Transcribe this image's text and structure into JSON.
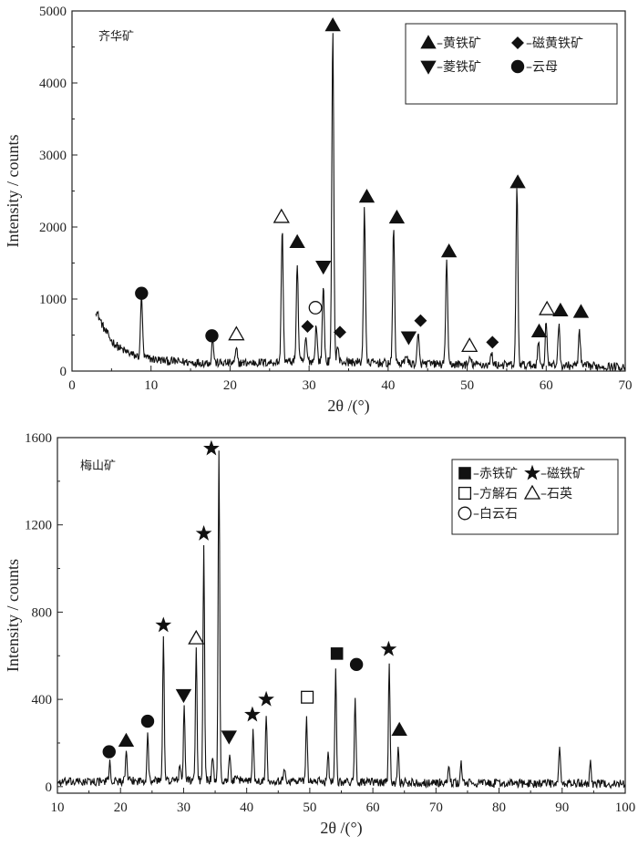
{
  "chart_data": [
    {
      "type": "line",
      "title": "",
      "panel_label": "齐华矿",
      "xlabel": "2θ /(°)",
      "ylabel": "Intensity / counts",
      "xlim": [
        0,
        70
      ],
      "ylim": [
        0,
        5000
      ],
      "xticks": [
        0,
        10,
        20,
        30,
        40,
        50,
        60,
        70
      ],
      "yticks": [
        0,
        1000,
        2000,
        3000,
        4000,
        5000
      ],
      "xtick_labels": [
        "0",
        "10",
        "20",
        "30",
        "40",
        "50",
        "60",
        "70"
      ],
      "ytick_labels": [
        "0",
        "1000",
        "2000",
        "3000",
        "4000",
        "5000"
      ],
      "legend": {
        "position": "top-right",
        "entries": [
          {
            "marker": "triangle-up-filled",
            "label": "–黄铁矿"
          },
          {
            "marker": "diamond-filled",
            "label": "–磁黄铁矿"
          },
          {
            "marker": "triangle-down-filled",
            "label": "–菱铁矿"
          },
          {
            "marker": "circle-filled",
            "label": "–云母"
          }
        ]
      },
      "baseline": {
        "x": [
          3,
          4,
          5,
          6,
          7,
          8,
          10,
          12,
          15,
          20,
          25,
          30,
          40,
          50,
          60,
          70
        ],
        "y": [
          850,
          600,
          420,
          320,
          260,
          210,
          170,
          140,
          120,
          110,
          120,
          140,
          110,
          90,
          80,
          60
        ]
      },
      "peaks": [
        {
          "x": 8.8,
          "y": 1050
        },
        {
          "x": 17.8,
          "y": 450
        },
        {
          "x": 20.8,
          "y": 300
        },
        {
          "x": 26.6,
          "y": 2000
        },
        {
          "x": 28.5,
          "y": 1500
        },
        {
          "x": 29.6,
          "y": 450
        },
        {
          "x": 30.9,
          "y": 650
        },
        {
          "x": 31.8,
          "y": 1200
        },
        {
          "x": 33.0,
          "y": 4800
        },
        {
          "x": 33.6,
          "y": 350
        },
        {
          "x": 37.0,
          "y": 2280
        },
        {
          "x": 40.7,
          "y": 2000
        },
        {
          "x": 42.3,
          "y": 250
        },
        {
          "x": 43.8,
          "y": 500
        },
        {
          "x": 47.4,
          "y": 1550
        },
        {
          "x": 50.4,
          "y": 180
        },
        {
          "x": 53.1,
          "y": 250
        },
        {
          "x": 56.3,
          "y": 2550
        },
        {
          "x": 59.0,
          "y": 400
        },
        {
          "x": 60.0,
          "y": 700
        },
        {
          "x": 61.6,
          "y": 650
        },
        {
          "x": 64.2,
          "y": 550
        }
      ],
      "markers": [
        {
          "symbol": "circle-filled",
          "x": 8.8,
          "y": 1080
        },
        {
          "symbol": "circle-filled",
          "x": 17.7,
          "y": 490
        },
        {
          "symbol": "triangle-up-open",
          "x": 20.8,
          "y": 510
        },
        {
          "symbol": "triangle-up-open",
          "x": 26.5,
          "y": 2140
        },
        {
          "symbol": "triangle-up-filled",
          "x": 28.5,
          "y": 1790
        },
        {
          "symbol": "diamond-filled",
          "x": 29.8,
          "y": 620
        },
        {
          "symbol": "circle-open",
          "x": 30.8,
          "y": 880
        },
        {
          "symbol": "triangle-down-filled",
          "x": 31.8,
          "y": 1450
        },
        {
          "symbol": "triangle-up-filled",
          "x": 33.0,
          "y": 4800
        },
        {
          "symbol": "diamond-filled",
          "x": 33.9,
          "y": 540
        },
        {
          "symbol": "triangle-up-filled",
          "x": 37.3,
          "y": 2420
        },
        {
          "symbol": "triangle-up-filled",
          "x": 41.1,
          "y": 2130
        },
        {
          "symbol": "triangle-down-filled",
          "x": 42.6,
          "y": 470
        },
        {
          "symbol": "diamond-filled",
          "x": 44.1,
          "y": 700
        },
        {
          "symbol": "triangle-up-filled",
          "x": 47.7,
          "y": 1660
        },
        {
          "symbol": "triangle-up-open",
          "x": 50.3,
          "y": 350
        },
        {
          "symbol": "diamond-filled",
          "x": 53.2,
          "y": 400
        },
        {
          "symbol": "triangle-up-filled",
          "x": 56.4,
          "y": 2620
        },
        {
          "symbol": "triangle-up-filled",
          "x": 59.1,
          "y": 550
        },
        {
          "symbol": "triangle-up-open",
          "x": 60.1,
          "y": 860
        },
        {
          "symbol": "triangle-up-filled",
          "x": 61.8,
          "y": 840
        },
        {
          "symbol": "triangle-up-filled",
          "x": 64.4,
          "y": 820
        }
      ]
    },
    {
      "type": "line",
      "title": "",
      "panel_label": "梅山矿",
      "xlabel": "2θ /(°)",
      "ylabel": "Intensity / counts",
      "xlim": [
        10,
        100
      ],
      "ylim": [
        -30,
        1600
      ],
      "xticks": [
        10,
        20,
        30,
        40,
        50,
        60,
        70,
        80,
        90,
        100
      ],
      "yticks": [
        0,
        400,
        800,
        1200,
        1600
      ],
      "xtick_labels": [
        "10",
        "20",
        "30",
        "40",
        "50",
        "60",
        "70",
        "80",
        "90",
        "100"
      ],
      "ytick_labels": [
        "0",
        "400",
        "800",
        "1200",
        "1600"
      ],
      "legend": {
        "position": "top-right",
        "entries": [
          {
            "marker": "square-filled",
            "label": "–赤铁矿"
          },
          {
            "marker": "star-filled",
            "label": "–磁铁矿"
          },
          {
            "marker": "square-open",
            "label": "–方解石"
          },
          {
            "marker": "triangle-up-open",
            "label": "–石英"
          },
          {
            "marker": "circle-open",
            "label": "–白云石"
          }
        ]
      },
      "baseline": {
        "x": [
          10,
          20,
          30,
          40,
          50,
          60,
          70,
          80,
          90,
          100
        ],
        "y": [
          20,
          25,
          30,
          30,
          25,
          20,
          18,
          15,
          15,
          12
        ]
      },
      "peaks": [
        {
          "x": 18.3,
          "y": 120
        },
        {
          "x": 20.9,
          "y": 170
        },
        {
          "x": 24.3,
          "y": 260
        },
        {
          "x": 26.8,
          "y": 700
        },
        {
          "x": 29.4,
          "y": 100
        },
        {
          "x": 30.1,
          "y": 380
        },
        {
          "x": 32.0,
          "y": 640
        },
        {
          "x": 33.2,
          "y": 1120
        },
        {
          "x": 34.6,
          "y": 140
        },
        {
          "x": 35.6,
          "y": 1550
        },
        {
          "x": 37.3,
          "y": 150
        },
        {
          "x": 41.0,
          "y": 250
        },
        {
          "x": 43.1,
          "y": 330
        },
        {
          "x": 46.0,
          "y": 80
        },
        {
          "x": 49.5,
          "y": 320
        },
        {
          "x": 52.9,
          "y": 170
        },
        {
          "x": 54.1,
          "y": 550
        },
        {
          "x": 57.2,
          "y": 420
        },
        {
          "x": 62.6,
          "y": 580
        },
        {
          "x": 64.0,
          "y": 180
        },
        {
          "x": 72.0,
          "y": 90
        },
        {
          "x": 74.0,
          "y": 110
        },
        {
          "x": 89.6,
          "y": 180
        },
        {
          "x": 94.5,
          "y": 120
        }
      ],
      "markers": [
        {
          "symbol": "circle-filled",
          "x": 18.2,
          "y": 160
        },
        {
          "symbol": "triangle-up-filled",
          "x": 20.9,
          "y": 210
        },
        {
          "symbol": "circle-filled",
          "x": 24.3,
          "y": 300
        },
        {
          "symbol": "star-filled",
          "x": 26.8,
          "y": 740
        },
        {
          "symbol": "triangle-down-filled",
          "x": 30.0,
          "y": 420
        },
        {
          "symbol": "triangle-up-open",
          "x": 32.0,
          "y": 680
        },
        {
          "symbol": "star-filled",
          "x": 33.2,
          "y": 1160
        },
        {
          "symbol": "star-filled",
          "x": 34.4,
          "y": 1550
        },
        {
          "symbol": "triangle-down-filled",
          "x": 37.2,
          "y": 230
        },
        {
          "symbol": "star-filled",
          "x": 40.9,
          "y": 330
        },
        {
          "symbol": "star-filled",
          "x": 43.1,
          "y": 400
        },
        {
          "symbol": "square-open",
          "x": 49.6,
          "y": 410
        },
        {
          "symbol": "square-filled",
          "x": 54.3,
          "y": 610
        },
        {
          "symbol": "circle-filled",
          "x": 57.4,
          "y": 560
        },
        {
          "symbol": "star-filled",
          "x": 62.5,
          "y": 630
        },
        {
          "symbol": "triangle-up-filled",
          "x": 64.2,
          "y": 260
        }
      ]
    }
  ]
}
